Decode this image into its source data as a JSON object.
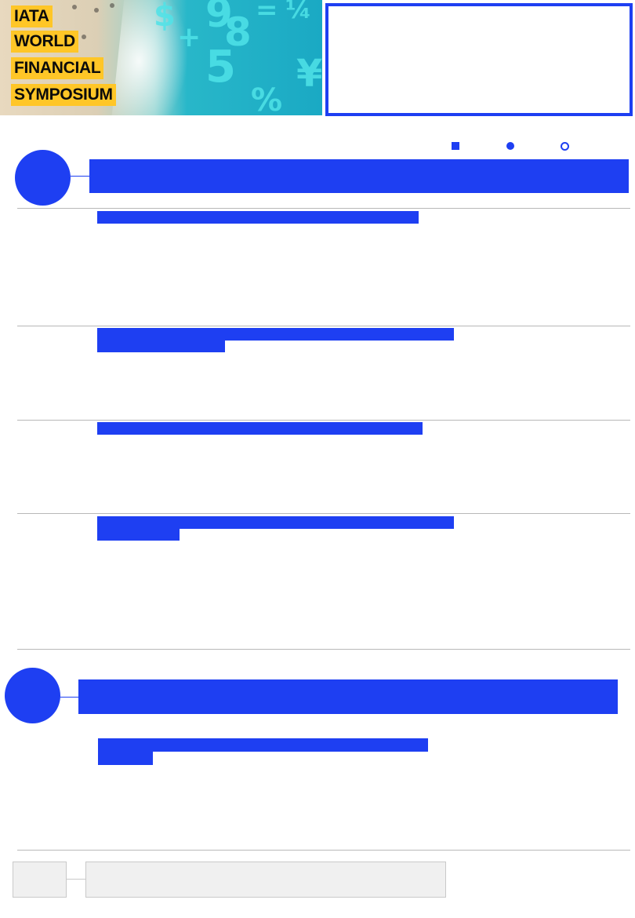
{
  "banner": {
    "lines": [
      "IATA",
      "WORLD",
      "FINANCIAL",
      "SYMPOSIUM"
    ],
    "background_glyphs": [
      "$",
      "+",
      "9",
      "8",
      "=",
      "¼",
      "5",
      "¥",
      "%"
    ],
    "word_highlight_color": "#ffc627"
  },
  "accent_color": "#1e3ff2",
  "legend": {
    "icons": [
      "square-icon",
      "filled-circle-icon",
      "ring-icon"
    ]
  },
  "sections": [
    {
      "sub_items": [
        {
          "title_lines": 1
        },
        {
          "title_lines": 2
        },
        {
          "title_lines": 1
        },
        {
          "title_lines": 2
        }
      ]
    },
    {
      "sub_items": [
        {
          "title_lines": 2
        }
      ]
    }
  ]
}
